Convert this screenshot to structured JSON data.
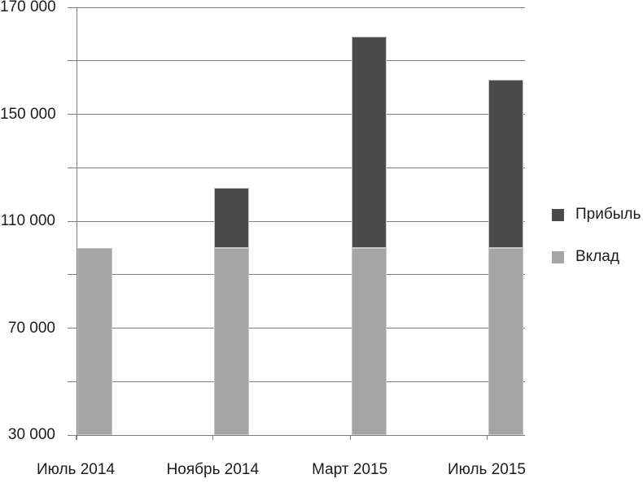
{
  "chart_data": {
    "type": "bar",
    "variant": "stacked-vertical",
    "title": "",
    "categories": [
      "Июль 2014",
      "Ноябрь 2014",
      "Март 2015",
      "Июль 2015"
    ],
    "series": [
      {
        "name": "Вклад",
        "color": "#a5a5a5",
        "values": [
          100000,
          100000,
          100000,
          100000
        ]
      },
      {
        "name": "Прибыль",
        "color": "#4b4b4b",
        "values": [
          0,
          22500,
          64500,
          56500
        ]
      }
    ],
    "totals": [
      100000,
      122500,
      164500,
      156500
    ],
    "y_axis": {
      "min": 30000,
      "max": 170000,
      "gridlines": [
        {
          "value": 170000,
          "label": "170 000"
        },
        {
          "value": 160000,
          "label": ""
        },
        {
          "value": 150000,
          "label": "150 000"
        },
        {
          "value": 130000,
          "label": ""
        },
        {
          "value": 110000,
          "label": "110 000"
        },
        {
          "value": 90000,
          "label": ""
        },
        {
          "value": 70000,
          "label": "70 000"
        },
        {
          "value": 50000,
          "label": ""
        },
        {
          "value": 30000,
          "label": "30 000"
        }
      ],
      "scale_note": "gridlines equally spaced: steps of 20 000 from 30 000 to 150 000, then steps of 10 000 up to 170 000"
    },
    "x_axis": {
      "labels": [
        "Июль 2014",
        "Ноябрь 2014",
        "Март 2015",
        "Июль 2015"
      ]
    },
    "legend": {
      "position": "right",
      "items": [
        {
          "label": "Прибыль",
          "color": "#4b4b4b"
        },
        {
          "label": "Вклад",
          "color": "#a5a5a5"
        }
      ]
    },
    "grid": true,
    "colors": {
      "axis": "#7f7f7f",
      "text": "#1c1c1c",
      "background": "#ffffff",
      "bar_border": "#c6c6c6"
    }
  }
}
